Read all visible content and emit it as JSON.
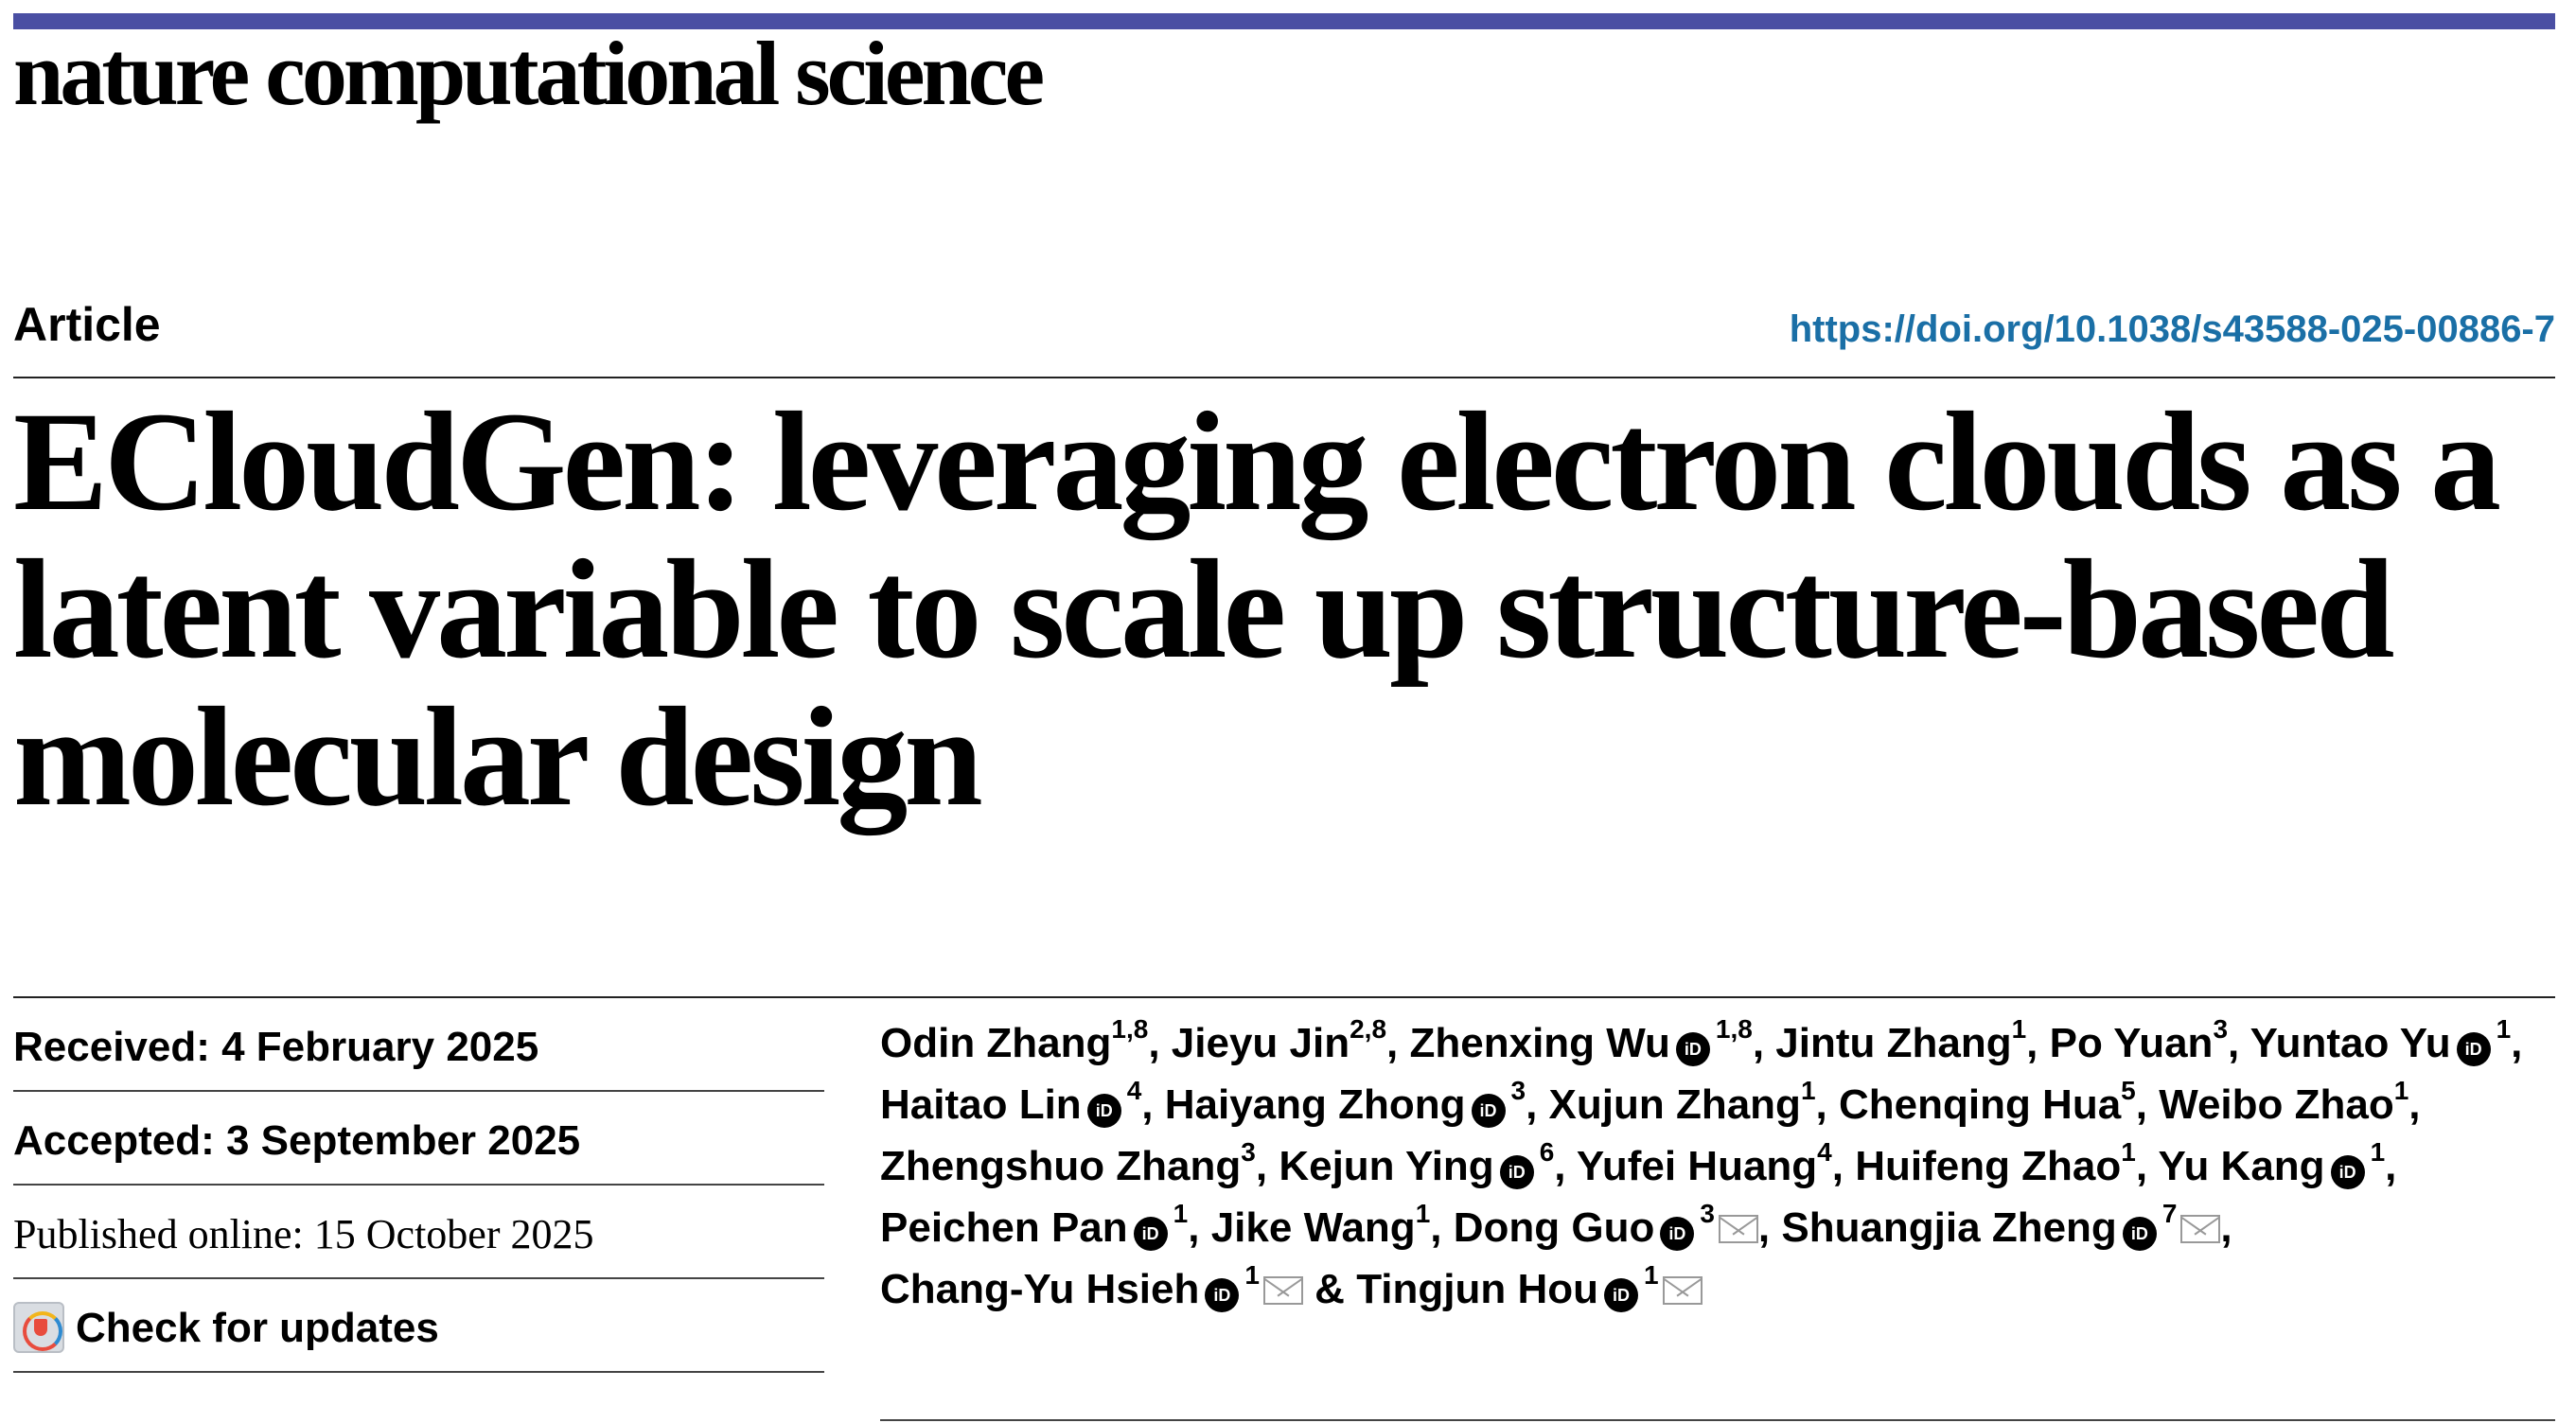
{
  "journal": {
    "name": "nature computational science",
    "accent_color": "#4a4fa3"
  },
  "header": {
    "article_type": "Article",
    "doi": "https://doi.org/10.1038/s43588-025-00886-7",
    "doi_color": "#1a6fa6"
  },
  "title": "ECloudGen: leveraging electron clouds as a latent variable to scale up structure-based molecular design",
  "dates": {
    "received": "Received: 4 February 2025",
    "accepted": "Accepted: 3 September 2025",
    "published": "Published online: 15 October 2025"
  },
  "check_updates": {
    "label": "Check for updates",
    "icon": "crossmark-icon"
  },
  "authors": [
    {
      "name": "Odin Zhang",
      "sup": "1,8",
      "orcid": false,
      "mail": false
    },
    {
      "name": "Jieyu Jin",
      "sup": "2,8",
      "orcid": false,
      "mail": false
    },
    {
      "name": "Zhenxing Wu",
      "sup": "1,8",
      "orcid": true,
      "mail": false
    },
    {
      "name": "Jintu Zhang",
      "sup": "1",
      "orcid": false,
      "mail": false
    },
    {
      "name": "Po Yuan",
      "sup": "3",
      "orcid": false,
      "mail": false
    },
    {
      "name": "Yuntao Yu",
      "sup": "1",
      "orcid": true,
      "mail": false
    },
    {
      "name": "Haitao Lin",
      "sup": "4",
      "orcid": true,
      "mail": false
    },
    {
      "name": "Haiyang Zhong",
      "sup": "3",
      "orcid": true,
      "mail": false
    },
    {
      "name": "Xujun Zhang",
      "sup": "1",
      "orcid": false,
      "mail": false
    },
    {
      "name": "Chenqing Hua",
      "sup": "5",
      "orcid": false,
      "mail": false
    },
    {
      "name": "Weibo Zhao",
      "sup": "1",
      "orcid": false,
      "mail": false
    },
    {
      "name": "Zhengshuo Zhang",
      "sup": "3",
      "orcid": false,
      "mail": false
    },
    {
      "name": "Kejun Ying",
      "sup": "6",
      "orcid": true,
      "mail": false
    },
    {
      "name": "Yufei Huang",
      "sup": "4",
      "orcid": false,
      "mail": false
    },
    {
      "name": "Huifeng Zhao",
      "sup": "1",
      "orcid": false,
      "mail": false
    },
    {
      "name": "Yu Kang",
      "sup": "1",
      "orcid": true,
      "mail": false
    },
    {
      "name": "Peichen Pan",
      "sup": "1",
      "orcid": true,
      "mail": false
    },
    {
      "name": "Jike Wang",
      "sup": "1",
      "orcid": false,
      "mail": false
    },
    {
      "name": "Dong Guo",
      "sup": "3",
      "orcid": true,
      "mail": true
    },
    {
      "name": "Shuangjia Zheng",
      "sup": "7",
      "orcid": true,
      "mail": true
    },
    {
      "name": "Chang-Yu Hsieh",
      "sup": "1",
      "orcid": true,
      "mail": true
    },
    {
      "name": "Tingjun Hou",
      "sup": "1",
      "orcid": true,
      "mail": true
    }
  ],
  "author_separator": ", ",
  "author_last_separator": " & ",
  "orcid_icon_text": "iD"
}
